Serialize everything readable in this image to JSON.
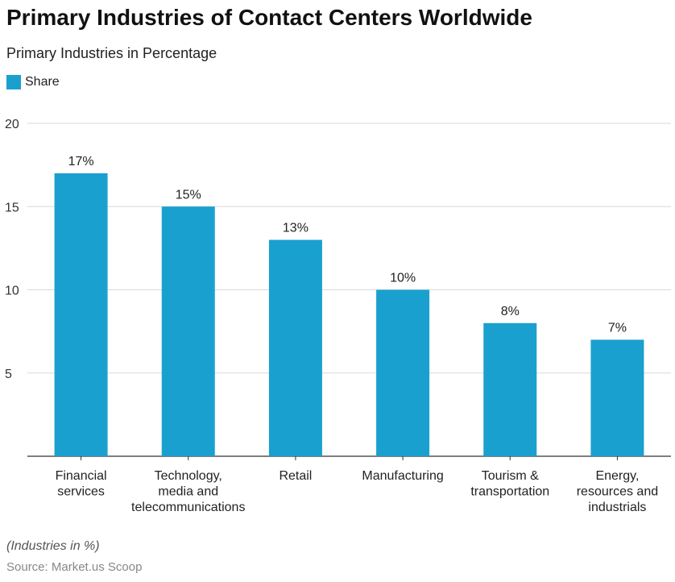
{
  "title": "Primary Industries of Contact Centers Worldwide",
  "subtitle": "Primary Industries in Percentage",
  "footer_note": "(Industries in %)",
  "source": "Source: Market.us Scoop",
  "colors": {
    "bar": "#1aa0cf",
    "grid": "#d9d9d9",
    "axis": "#333333"
  },
  "chart_data": {
    "type": "bar",
    "categories": [
      [
        "Financial",
        "services"
      ],
      [
        "Technology,",
        "media and",
        "telecommunications"
      ],
      [
        "Retail"
      ],
      [
        "Manufacturing"
      ],
      [
        "Tourism &",
        "transportation"
      ],
      [
        "Energy,",
        "resources and",
        "industrials"
      ]
    ],
    "series": [
      {
        "name": "Share",
        "values": [
          17,
          15,
          13,
          10,
          8,
          7
        ]
      }
    ],
    "data_labels": [
      "17%",
      "15%",
      "13%",
      "10%",
      "8%",
      "7%"
    ],
    "yticks": [
      5,
      10,
      15,
      20
    ],
    "ylim": [
      0,
      20
    ],
    "grid": true,
    "legend": "top-left"
  }
}
